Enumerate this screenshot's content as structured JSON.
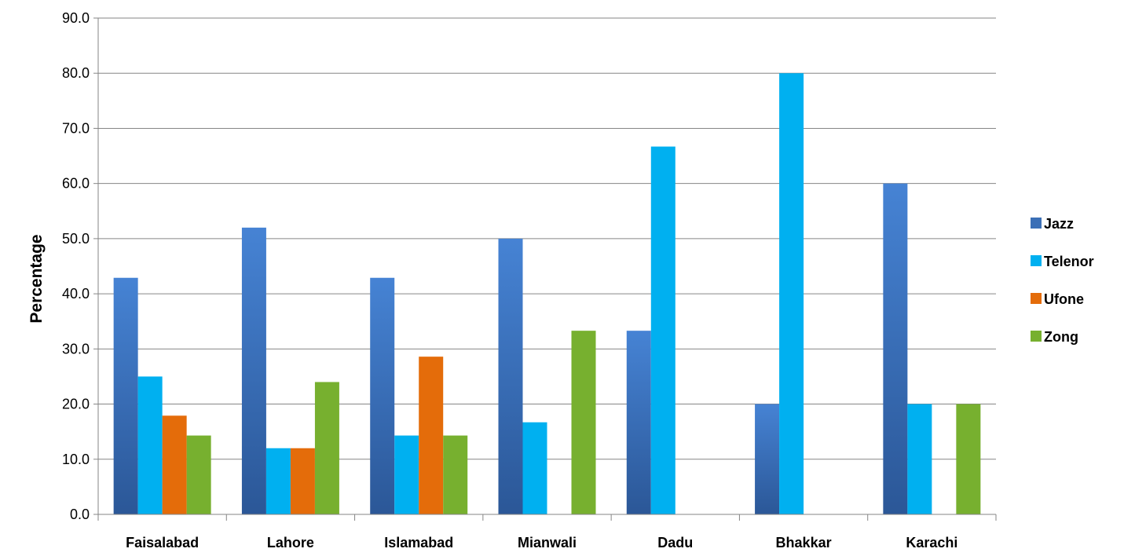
{
  "chart_data": {
    "type": "bar",
    "ylabel": "Percentage",
    "xlabel": "",
    "ylim": [
      0,
      90
    ],
    "ytick_step": 10,
    "ytick_format": "0.0",
    "grid": "horizontal",
    "legend_position": "right",
    "categories": [
      "Faisalabad",
      "Lahore",
      "Islamabad",
      "Mianwali",
      "Dadu",
      "Bhakkar",
      "Karachi"
    ],
    "series": [
      {
        "name": "Jazz",
        "color": "#3B6FB6",
        "values": [
          42.9,
          52.0,
          42.9,
          50.0,
          33.3,
          20.0,
          60.0
        ]
      },
      {
        "name": "Telenor",
        "color": "#00B0F0",
        "values": [
          25.0,
          12.0,
          14.3,
          16.7,
          66.7,
          80.0,
          20.0
        ]
      },
      {
        "name": "Ufone",
        "color": "#E46C0A",
        "values": [
          17.9,
          12.0,
          28.6,
          0,
          0,
          0,
          0
        ]
      },
      {
        "name": "Zong",
        "color": "#77B02F",
        "values": [
          14.3,
          24.0,
          14.3,
          33.3,
          0,
          0,
          20.0
        ]
      }
    ]
  }
}
